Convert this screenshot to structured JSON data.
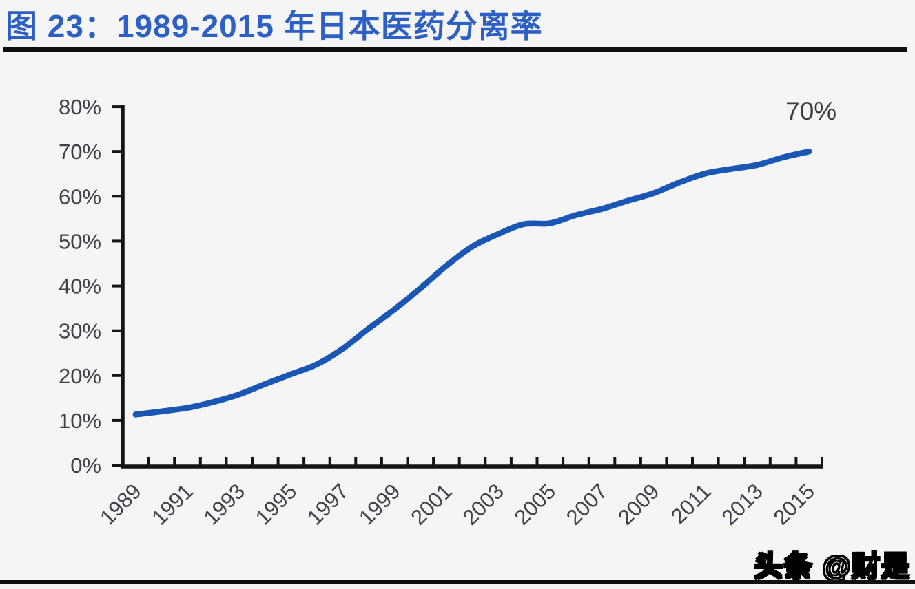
{
  "header": {
    "title": "图 23：1989-2015 年日本医药分离率",
    "title_color": "#2d5fc4"
  },
  "watermark": {
    "text": "头条 @财是"
  },
  "chart_data": {
    "type": "line",
    "title": "图 23：1989-2015 年日本医药分离率",
    "x": [
      1989,
      1990,
      1991,
      1992,
      1993,
      1994,
      1995,
      1996,
      1997,
      1998,
      1999,
      2000,
      2001,
      2002,
      2003,
      2004,
      2005,
      2006,
      2007,
      2008,
      2009,
      2010,
      2011,
      2012,
      2013,
      2014,
      2015
    ],
    "series": [
      {
        "name": "日本医药分离率",
        "values": [
          11.3,
          12.0,
          12.8,
          14.1,
          15.8,
          18.1,
          20.3,
          22.5,
          26.0,
          30.5,
          34.8,
          39.5,
          44.5,
          48.8,
          51.6,
          53.8,
          54.0,
          55.8,
          57.2,
          59.0,
          60.7,
          63.1,
          65.1,
          66.1,
          67.0,
          68.7,
          70.0
        ]
      }
    ],
    "ylim": [
      0,
      80
    ],
    "yticks": [
      0,
      10,
      20,
      30,
      40,
      50,
      60,
      70,
      80
    ],
    "ytick_labels": [
      "0%",
      "10%",
      "20%",
      "30%",
      "40%",
      "50%",
      "60%",
      "70%",
      "80%"
    ],
    "xtick_labels": [
      "1989",
      "1991",
      "1993",
      "1995",
      "1997",
      "1999",
      "2001",
      "2003",
      "2005",
      "2007",
      "2009",
      "2011",
      "2013",
      "2015"
    ],
    "annotation": {
      "text": "70%",
      "at_year": 2015,
      "value": 70
    },
    "grid": false,
    "legend": "none",
    "colors": {
      "line": "#1a56b4",
      "axis": "#141414",
      "tick_label": "#3f4049",
      "annotation_label": "#3c3c45"
    }
  }
}
